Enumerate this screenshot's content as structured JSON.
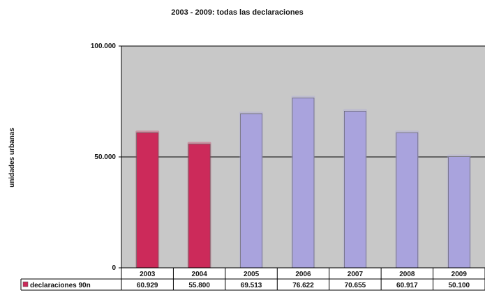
{
  "chart_data": {
    "type": "bar",
    "title": "2003 - 2009: todas las declaraciones",
    "xlabel": "",
    "ylabel": "unidades urbanas",
    "categories": [
      "2003",
      "2004",
      "2005",
      "2006",
      "2007",
      "2008",
      "2009"
    ],
    "series": [
      {
        "name": "declaraciones 90n",
        "values": [
          60929,
          55800,
          69513,
          76622,
          70655,
          60917,
          50100
        ],
        "value_labels": [
          "60.929",
          "55.800",
          "69.513",
          "76.622",
          "70.655",
          "60.917",
          "50.100"
        ],
        "colors": [
          "#cc2a5a",
          "#cc2a5a",
          "#a9a3dd",
          "#a9a3dd",
          "#a9a3dd",
          "#a9a3dd",
          "#a9a3dd"
        ]
      }
    ],
    "ylim": [
      0,
      100000
    ],
    "yticks": [
      0,
      50000,
      100000
    ],
    "ytick_labels": [
      "0",
      "50.000",
      "100.000"
    ],
    "grid": true,
    "data_table": true,
    "colors": {
      "plot_bg": "#c8c8c8",
      "gridline": "#000000",
      "legend_swatch": "#cc2a5a"
    }
  }
}
